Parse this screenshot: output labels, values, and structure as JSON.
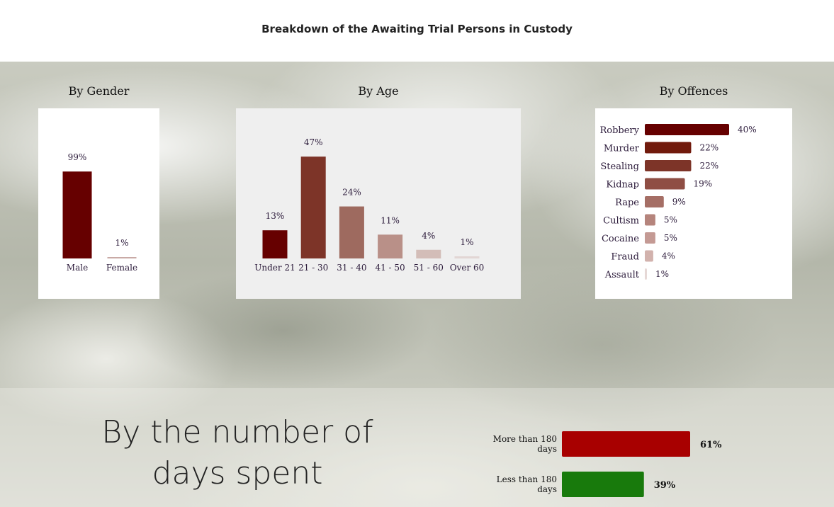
{
  "page": {
    "title": "Breakdown of the Awaiting Trial Persons in Custody"
  },
  "chart_data": [
    {
      "type": "bar",
      "title": "By Gender",
      "categories": [
        "Male",
        "Female"
      ],
      "values": [
        99,
        1
      ],
      "value_labels": [
        "99%",
        "1%"
      ],
      "colors": [
        "#660000",
        "#c9aaa6"
      ],
      "ylim": [
        0,
        100
      ],
      "grid": false
    },
    {
      "type": "bar",
      "title": "By Age",
      "categories": [
        "Under 21",
        "21 - 30",
        "31 - 40",
        "41 - 50",
        "51 - 60",
        "Over 60"
      ],
      "values": [
        13,
        47,
        24,
        11,
        4,
        1
      ],
      "value_labels": [
        "13%",
        "47%",
        "24%",
        "11%",
        "4%",
        "1%"
      ],
      "colors": [
        "#660000",
        "#7d3428",
        "#9e6a5f",
        "#b99088",
        "#d3bdb8",
        "#e2d6d4"
      ],
      "ylim": [
        0,
        50
      ],
      "grid": false
    },
    {
      "type": "bar",
      "orientation": "horizontal",
      "title": "By Offences",
      "categories": [
        "Robbery",
        "Murder",
        "Stealing",
        "Kidnap",
        "Rape",
        "Cultism",
        "Cocaine",
        "Fraud",
        "Assault"
      ],
      "values": [
        40,
        22,
        22,
        19,
        9,
        5,
        5,
        4,
        1
      ],
      "value_labels": [
        "40%",
        "22%",
        "22%",
        "19%",
        "9%",
        "5%",
        "5%",
        "4%",
        "1%"
      ],
      "colors": [
        "#660000",
        "#711a0c",
        "#7d3428",
        "#8f4e44",
        "#a56e65",
        "#b5847c",
        "#c49a94",
        "#d2b2ad",
        "#e6d8d6"
      ],
      "xlim": [
        0,
        40
      ],
      "grid": false
    },
    {
      "type": "bar",
      "orientation": "horizontal",
      "title": "By the number of days spent",
      "categories": [
        "More than 180 days",
        "Less than 180 days"
      ],
      "category_lines": [
        [
          "More than 180",
          "days"
        ],
        [
          "Less than 180",
          "days"
        ]
      ],
      "values": [
        61,
        39
      ],
      "value_labels": [
        "61%",
        "39%"
      ],
      "colors": [
        "#a80000",
        "#187a0c"
      ],
      "xlim": [
        0,
        61
      ],
      "grid": false
    }
  ]
}
